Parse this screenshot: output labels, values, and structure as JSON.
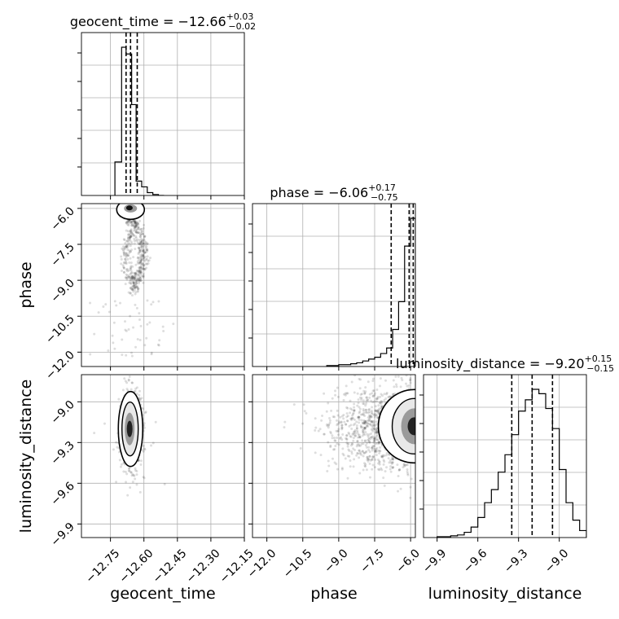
{
  "chart_data": {
    "type": "corner",
    "parameters": [
      "geocent_time",
      "phase",
      "luminosity_distance"
    ],
    "titles": [
      {
        "prefix": "geocent_time = −12.66",
        "plus": "+0.03",
        "minus": "−0.02"
      },
      {
        "prefix": "phase = −6.06",
        "plus": "+0.17",
        "minus": "−0.75"
      },
      {
        "prefix": "luminosity_distance = −9.20",
        "plus": "+0.15",
        "minus": "−0.15"
      }
    ],
    "axis_labels": {
      "x": [
        "geocent_time",
        "phase",
        "luminosity_distance"
      ],
      "y": [
        "phase",
        "luminosity_distance"
      ]
    },
    "ranges": {
      "geocent_time": [
        -12.88,
        -12.15
      ],
      "phase": [
        -12.6,
        -5.8
      ],
      "luminosity_distance": [
        -10.0,
        -8.8
      ]
    },
    "ticks": {
      "geocent_time": [
        -12.75,
        -12.6,
        -12.45,
        -12.3,
        -12.15
      ],
      "geocent_time_labels": [
        "−12.75",
        "−12.60",
        "−12.45",
        "−12.30",
        "−12.15"
      ],
      "phase": [
        -12.0,
        -10.5,
        -9.0,
        -7.5,
        -6.0
      ],
      "phase_labels": [
        "−12.0",
        "−10.5",
        "−9.0",
        "−7.5",
        "−6.0"
      ],
      "luminosity_distance": [
        -9.9,
        -9.6,
        -9.3,
        -9.0
      ],
      "luminosity_distance_labels": [
        "−9.9",
        "−9.6",
        "−9.3",
        "−9.0"
      ]
    },
    "grid": true,
    "quantiles": {
      "geocent_time": [
        -12.68,
        -12.66,
        -12.63
      ],
      "phase": [
        -6.81,
        -6.06,
        -5.89
      ],
      "luminosity_distance": [
        -9.35,
        -9.2,
        -9.05
      ]
    },
    "histograms": {
      "geocent_time": {
        "edges": [
          -12.73,
          -12.7,
          -12.68,
          -12.655,
          -12.635,
          -12.61,
          -12.585,
          -12.56,
          -12.535,
          -12.51
        ],
        "counts": [
          35,
          155,
          148,
          95,
          15,
          9,
          3,
          1,
          0
        ]
      },
      "phase": {
        "edges": [
          -9.5,
          -9.0,
          -8.5,
          -8.25,
          -8.0,
          -7.75,
          -7.5,
          -7.25,
          -7.0,
          -6.75,
          -6.5,
          -6.25,
          -6.0,
          -5.8
        ],
        "counts": [
          1,
          2,
          3,
          4,
          6,
          8,
          10,
          14,
          20,
          40,
          70,
          130,
          160
        ]
      },
      "luminosity_distance": {
        "edges": [
          -9.9,
          -9.85,
          -9.8,
          -9.75,
          -9.7,
          -9.65,
          -9.6,
          -9.55,
          -9.5,
          -9.45,
          -9.4,
          -9.35,
          -9.3,
          -9.25,
          -9.2,
          -9.15,
          -9.1,
          -9.05,
          -9.0,
          -8.95,
          -8.9,
          -8.85,
          -8.8
        ],
        "counts": [
          1,
          1,
          2,
          3,
          6,
          12,
          23,
          40,
          55,
          75,
          95,
          118,
          145,
          158,
          170,
          165,
          148,
          125,
          78,
          40,
          20,
          8
        ]
      }
    }
  }
}
